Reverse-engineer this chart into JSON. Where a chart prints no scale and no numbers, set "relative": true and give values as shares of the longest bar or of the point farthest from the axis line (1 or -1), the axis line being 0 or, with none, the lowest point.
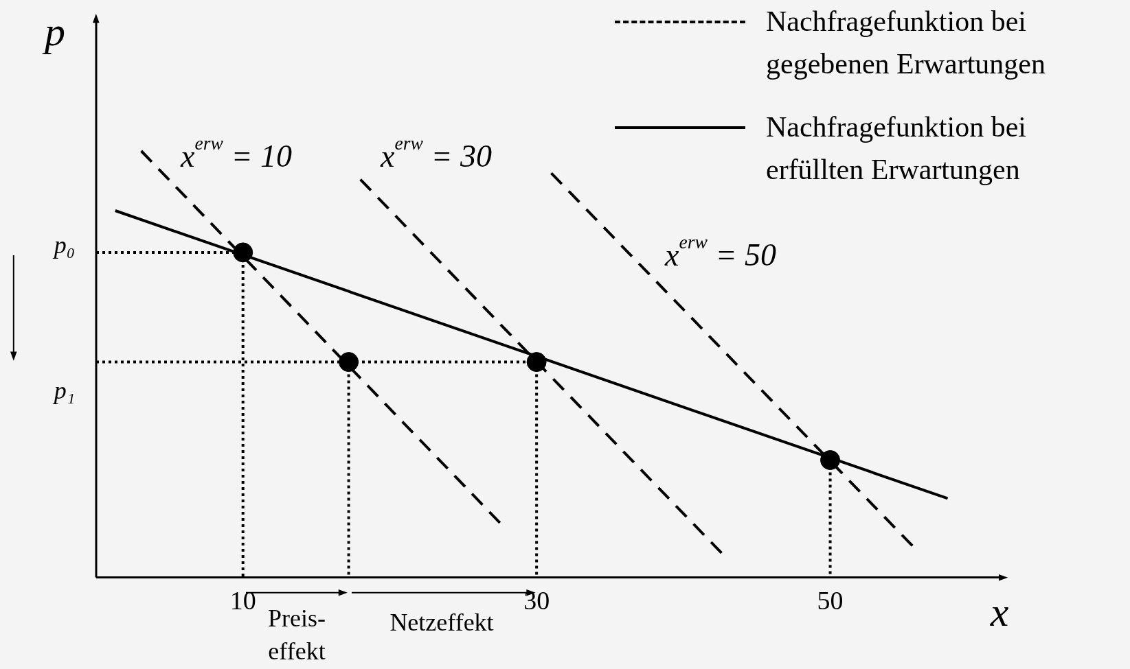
{
  "chart_data": {
    "type": "line",
    "relative": true,
    "xlabel": "x",
    "ylabel": "p",
    "xlim": [
      0,
      62
    ],
    "xticks": [
      10,
      30,
      50
    ],
    "legend": "top right",
    "grid": false,
    "series": [
      {
        "name": "Nachfragefunktion bei gegebenen Erwartungen",
        "color": "#000000",
        "line_style": "dashed",
        "x": [
          3.07,
          27.5
        ],
        "values": [
          1.0,
          0.128
        ]
      },
      {
        "color": "#000000",
        "line_style": "dashed",
        "x": [
          18.0,
          42.6
        ],
        "values": [
          0.933,
          0.057
        ]
      },
      {
        "color": "#000000",
        "line_style": "dashed",
        "x": [
          31.0,
          55.6
        ],
        "values": [
          0.948,
          0.074
        ]
      },
      {
        "name": "Nachfragefunktion bei erfüllten Erwartungen",
        "color": "#000000",
        "line_style": "solid",
        "x": [
          1.3,
          58.0
        ],
        "values": [
          0.86,
          0.185
        ]
      },
      {
        "color": "#000000",
        "line_style": "dotted",
        "x": [
          0,
          10
        ],
        "values": [
          0.762,
          0.762
        ]
      },
      {
        "color": "#000000",
        "line_style": "dotted",
        "x": [
          0,
          30
        ],
        "values": [
          0.505,
          0.505
        ]
      },
      {
        "color": "#000000",
        "line_style": "dotted",
        "x": [
          10,
          10
        ],
        "values": [
          0.762,
          0
        ]
      },
      {
        "color": "#000000",
        "line_style": "dotted",
        "x": [
          17.2,
          17.2
        ],
        "values": [
          0.505,
          0
        ]
      },
      {
        "color": "#000000",
        "line_style": "dotted",
        "x": [
          30,
          30
        ],
        "values": [
          0.505,
          0
        ]
      },
      {
        "color": "#000000",
        "line_style": "dotted",
        "x": [
          50,
          50
        ],
        "values": [
          0.275,
          0
        ]
      },
      {
        "type": "scatter",
        "color": "#000000",
        "marker": "circle",
        "x": [
          10,
          17.2,
          30,
          50
        ],
        "values": [
          0.762,
          0.505,
          0.505,
          0.275
        ]
      }
    ],
    "annotations": [
      "x$^{erw}$ = 10",
      "x$^{erw}$ = 30",
      "x$^{erw}$ = 50",
      "p₀",
      "p₁",
      "Preis-\neffekt",
      "Netzeffekt"
    ]
  }
}
